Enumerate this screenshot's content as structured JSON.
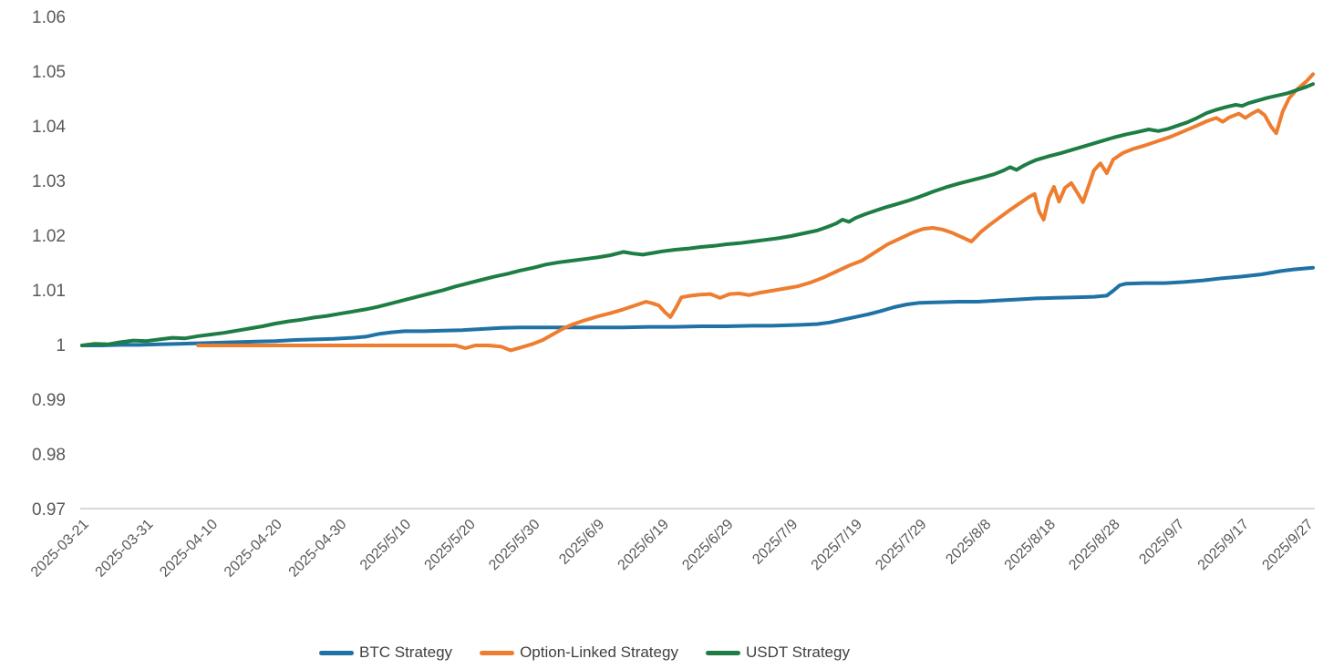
{
  "chart_data": {
    "type": "line",
    "title": "",
    "xlabel": "",
    "ylabel": "",
    "grid": "off",
    "legend_position": "bottom-center",
    "background_color": "#ffffff",
    "axis_line_color": "#d9d9d9",
    "tick_text_color": "#595959",
    "ylim": [
      0.97,
      1.06
    ],
    "y_tick_labels": [
      "1.06",
      "1.05",
      "1.04",
      "1.03",
      "1.02",
      "1.01",
      "1",
      "0.99",
      "0.98",
      "0.97"
    ],
    "y_tick_values": [
      1.06,
      1.05,
      1.04,
      1.03,
      1.02,
      1.01,
      1.0,
      0.99,
      0.98,
      0.97
    ],
    "x_tick_labels": [
      "2025-03-21",
      "2025-03-31",
      "2025-04-10",
      "2025-04-20",
      "2025-04-30",
      "2025/5/10",
      "2025/5/20",
      "2025/5/30",
      "2025/6/9",
      "2025/6/19",
      "2025/6/29",
      "2025/7/9",
      "2025/7/19",
      "2025/7/29",
      "2025/8/8",
      "2025/8/18",
      "2025/8/28",
      "2025/9/7",
      "2025/9/17",
      "2025/9/27"
    ],
    "x_tick_day_interval": 10,
    "x_day_range": [
      0,
      191
    ],
    "series": [
      {
        "name": "BTC Strategy",
        "color": "#1F72A6",
        "points": [
          [
            0,
            1.0
          ],
          [
            3,
            1.0
          ],
          [
            6,
            1.0001
          ],
          [
            9,
            1.0001
          ],
          [
            12,
            1.0002
          ],
          [
            15,
            1.0003
          ],
          [
            18,
            1.0004
          ],
          [
            21,
            1.0005
          ],
          [
            24,
            1.0006
          ],
          [
            27,
            1.0007
          ],
          [
            30,
            1.0008
          ],
          [
            33,
            1.001
          ],
          [
            36,
            1.0011
          ],
          [
            39,
            1.0012
          ],
          [
            42,
            1.0014
          ],
          [
            44,
            1.0016
          ],
          [
            46,
            1.0021
          ],
          [
            48,
            1.0024
          ],
          [
            50,
            1.0026
          ],
          [
            53,
            1.0026
          ],
          [
            56,
            1.0027
          ],
          [
            59,
            1.0028
          ],
          [
            62,
            1.003
          ],
          [
            65,
            1.0032
          ],
          [
            68,
            1.0033
          ],
          [
            72,
            1.0033
          ],
          [
            76,
            1.0033
          ],
          [
            80,
            1.0033
          ],
          [
            84,
            1.0033
          ],
          [
            88,
            1.0034
          ],
          [
            92,
            1.0034
          ],
          [
            96,
            1.0035
          ],
          [
            100,
            1.0035
          ],
          [
            104,
            1.0036
          ],
          [
            107,
            1.0036
          ],
          [
            110,
            1.0037
          ],
          [
            112,
            1.0038
          ],
          [
            114,
            1.0039
          ],
          [
            116,
            1.0042
          ],
          [
            118,
            1.0047
          ],
          [
            120,
            1.0052
          ],
          [
            122,
            1.0057
          ],
          [
            124,
            1.0063
          ],
          [
            126,
            1.007
          ],
          [
            128,
            1.0075
          ],
          [
            130,
            1.0078
          ],
          [
            133,
            1.0079
          ],
          [
            136,
            1.008
          ],
          [
            139,
            1.008
          ],
          [
            142,
            1.0082
          ],
          [
            145,
            1.0084
          ],
          [
            148,
            1.0086
          ],
          [
            151,
            1.0087
          ],
          [
            154,
            1.0088
          ],
          [
            157,
            1.0089
          ],
          [
            159,
            1.0091
          ],
          [
            160,
            1.01
          ],
          [
            161,
            1.011
          ],
          [
            162,
            1.0113
          ],
          [
            165,
            1.0114
          ],
          [
            168,
            1.0114
          ],
          [
            171,
            1.0116
          ],
          [
            174,
            1.0119
          ],
          [
            177,
            1.0123
          ],
          [
            180,
            1.0126
          ],
          [
            183,
            1.013
          ],
          [
            186,
            1.0136
          ],
          [
            188,
            1.0139
          ],
          [
            190,
            1.0141
          ],
          [
            191,
            1.0142
          ]
        ]
      },
      {
        "name": "Option-Linked Strategy",
        "color": "#EE7D2F",
        "points": [
          [
            18,
            1.0
          ],
          [
            24,
            1.0
          ],
          [
            30,
            1.0
          ],
          [
            36,
            1.0
          ],
          [
            42,
            1.0
          ],
          [
            48,
            1.0
          ],
          [
            54,
            1.0
          ],
          [
            58,
            1.0
          ],
          [
            59.5,
            0.9995
          ],
          [
            61,
            1.0
          ],
          [
            63,
            1.0
          ],
          [
            65,
            0.9998
          ],
          [
            66.5,
            0.9991
          ],
          [
            68,
            0.9996
          ],
          [
            70,
            1.0003
          ],
          [
            71.5,
            1.001
          ],
          [
            73,
            1.002
          ],
          [
            74.5,
            1.003
          ],
          [
            76,
            1.0038
          ],
          [
            78,
            1.0046
          ],
          [
            80,
            1.0053
          ],
          [
            82,
            1.0059
          ],
          [
            84,
            1.0066
          ],
          [
            86,
            1.0074
          ],
          [
            87.5,
            1.008
          ],
          [
            88.5,
            1.0077
          ],
          [
            89.5,
            1.0073
          ],
          [
            90.5,
            1.006
          ],
          [
            91.3,
            1.0052
          ],
          [
            92.2,
            1.007
          ],
          [
            93,
            1.0088
          ],
          [
            94.5,
            1.0091
          ],
          [
            96,
            1.0093
          ],
          [
            97.5,
            1.0094
          ],
          [
            99,
            1.0087
          ],
          [
            100.5,
            1.0094
          ],
          [
            102,
            1.0095
          ],
          [
            103.5,
            1.0092
          ],
          [
            105,
            1.0096
          ],
          [
            107,
            1.01
          ],
          [
            109,
            1.0104
          ],
          [
            111,
            1.0108
          ],
          [
            113,
            1.0115
          ],
          [
            115,
            1.0124
          ],
          [
            117,
            1.0135
          ],
          [
            119,
            1.0146
          ],
          [
            121,
            1.0155
          ],
          [
            123,
            1.017
          ],
          [
            125,
            1.0185
          ],
          [
            127,
            1.0196
          ],
          [
            129,
            1.0207
          ],
          [
            130.5,
            1.0213
          ],
          [
            132,
            1.0215
          ],
          [
            133.5,
            1.0212
          ],
          [
            135,
            1.0206
          ],
          [
            136.5,
            1.0198
          ],
          [
            138,
            1.019
          ],
          [
            139.5,
            1.0208
          ],
          [
            141,
            1.0222
          ],
          [
            142.5,
            1.0235
          ],
          [
            144,
            1.0248
          ],
          [
            145.5,
            1.026
          ],
          [
            147,
            1.0272
          ],
          [
            147.8,
            1.0277
          ],
          [
            148.5,
            1.0245
          ],
          [
            149.2,
            1.023
          ],
          [
            150,
            1.027
          ],
          [
            150.8,
            1.029
          ],
          [
            151.6,
            1.0263
          ],
          [
            152.5,
            1.0288
          ],
          [
            153.5,
            1.0297
          ],
          [
            154.5,
            1.0278
          ],
          [
            155.3,
            1.0262
          ],
          [
            156.2,
            1.0292
          ],
          [
            157,
            1.032
          ],
          [
            158,
            1.0333
          ],
          [
            159,
            1.0315
          ],
          [
            160,
            1.034
          ],
          [
            161.5,
            1.0352
          ],
          [
            163,
            1.0359
          ],
          [
            165,
            1.0366
          ],
          [
            167,
            1.0374
          ],
          [
            169,
            1.0382
          ],
          [
            171,
            1.0392
          ],
          [
            173,
            1.0402
          ],
          [
            174.5,
            1.041
          ],
          [
            176,
            1.0416
          ],
          [
            177,
            1.0409
          ],
          [
            178,
            1.0417
          ],
          [
            179.5,
            1.0424
          ],
          [
            180.5,
            1.0416
          ],
          [
            181.5,
            1.0424
          ],
          [
            182.5,
            1.043
          ],
          [
            183.5,
            1.0421
          ],
          [
            184.5,
            1.04
          ],
          [
            185.3,
            1.0388
          ],
          [
            186.3,
            1.0428
          ],
          [
            187.3,
            1.0452
          ],
          [
            188.5,
            1.0468
          ],
          [
            190,
            1.0483
          ],
          [
            191,
            1.0496
          ]
        ]
      },
      {
        "name": "USDT Strategy",
        "color": "#1E7D44",
        "points": [
          [
            0,
            1.0
          ],
          [
            2,
            1.0003
          ],
          [
            4,
            1.0002
          ],
          [
            6,
            1.0006
          ],
          [
            8,
            1.0009
          ],
          [
            10,
            1.0008
          ],
          [
            12,
            1.0011
          ],
          [
            14,
            1.0014
          ],
          [
            16,
            1.0013
          ],
          [
            18,
            1.0017
          ],
          [
            20,
            1.002
          ],
          [
            22,
            1.0023
          ],
          [
            24,
            1.0027
          ],
          [
            26,
            1.0031
          ],
          [
            28,
            1.0035
          ],
          [
            30,
            1.004
          ],
          [
            32,
            1.0044
          ],
          [
            34,
            1.0047
          ],
          [
            36,
            1.0051
          ],
          [
            38,
            1.0054
          ],
          [
            40,
            1.0058
          ],
          [
            42,
            1.0062
          ],
          [
            44,
            1.0066
          ],
          [
            46,
            1.0071
          ],
          [
            48,
            1.0077
          ],
          [
            50,
            1.0083
          ],
          [
            52,
            1.0089
          ],
          [
            54,
            1.0095
          ],
          [
            56,
            1.0101
          ],
          [
            58,
            1.0108
          ],
          [
            60,
            1.0114
          ],
          [
            62,
            1.012
          ],
          [
            64,
            1.0126
          ],
          [
            66,
            1.0131
          ],
          [
            68,
            1.0137
          ],
          [
            70,
            1.0142
          ],
          [
            72,
            1.0148
          ],
          [
            74,
            1.0152
          ],
          [
            76,
            1.0155
          ],
          [
            78,
            1.0158
          ],
          [
            80,
            1.0161
          ],
          [
            82,
            1.0165
          ],
          [
            84,
            1.0171
          ],
          [
            85.5,
            1.0168
          ],
          [
            87,
            1.0166
          ],
          [
            88.5,
            1.0169
          ],
          [
            90,
            1.0172
          ],
          [
            92,
            1.0175
          ],
          [
            94,
            1.0177
          ],
          [
            96,
            1.018
          ],
          [
            98,
            1.0182
          ],
          [
            100,
            1.0185
          ],
          [
            102,
            1.0187
          ],
          [
            104,
            1.019
          ],
          [
            106,
            1.0193
          ],
          [
            108,
            1.0196
          ],
          [
            110,
            1.02
          ],
          [
            112,
            1.0205
          ],
          [
            114,
            1.021
          ],
          [
            115.5,
            1.0216
          ],
          [
            117,
            1.0223
          ],
          [
            118,
            1.023
          ],
          [
            119,
            1.0226
          ],
          [
            120,
            1.0233
          ],
          [
            121.5,
            1.024
          ],
          [
            123,
            1.0246
          ],
          [
            124.5,
            1.0252
          ],
          [
            126,
            1.0257
          ],
          [
            128,
            1.0264
          ],
          [
            130,
            1.0272
          ],
          [
            132,
            1.0281
          ],
          [
            134,
            1.0289
          ],
          [
            136,
            1.0296
          ],
          [
            138,
            1.0302
          ],
          [
            140,
            1.0308
          ],
          [
            141.5,
            1.0313
          ],
          [
            143,
            1.032
          ],
          [
            144,
            1.0326
          ],
          [
            145,
            1.0321
          ],
          [
            146,
            1.0328
          ],
          [
            147,
            1.0334
          ],
          [
            148,
            1.0339
          ],
          [
            150,
            1.0346
          ],
          [
            152,
            1.0352
          ],
          [
            154,
            1.0359
          ],
          [
            156,
            1.0366
          ],
          [
            158,
            1.0373
          ],
          [
            160,
            1.038
          ],
          [
            162,
            1.0386
          ],
          [
            164,
            1.0391
          ],
          [
            165.5,
            1.0395
          ],
          [
            167,
            1.0392
          ],
          [
            168.5,
            1.0396
          ],
          [
            170,
            1.0402
          ],
          [
            171.5,
            1.0408
          ],
          [
            173,
            1.0416
          ],
          [
            174.5,
            1.0425
          ],
          [
            176,
            1.0431
          ],
          [
            177.5,
            1.0436
          ],
          [
            179,
            1.044
          ],
          [
            180,
            1.0438
          ],
          [
            181,
            1.0443
          ],
          [
            182.5,
            1.0448
          ],
          [
            184,
            1.0453
          ],
          [
            185.5,
            1.0457
          ],
          [
            187,
            1.0461
          ],
          [
            188,
            1.0465
          ],
          [
            189,
            1.0469
          ],
          [
            190,
            1.0473
          ],
          [
            191,
            1.0478
          ]
        ]
      }
    ]
  }
}
